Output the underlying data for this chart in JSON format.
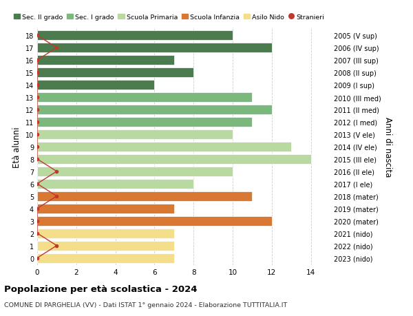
{
  "ages": [
    18,
    17,
    16,
    15,
    14,
    13,
    12,
    11,
    10,
    9,
    8,
    7,
    6,
    5,
    4,
    3,
    2,
    1,
    0
  ],
  "right_labels": [
    "2005 (V sup)",
    "2006 (IV sup)",
    "2007 (III sup)",
    "2008 (II sup)",
    "2009 (I sup)",
    "2010 (III med)",
    "2011 (II med)",
    "2012 (I med)",
    "2013 (V ele)",
    "2014 (IV ele)",
    "2015 (III ele)",
    "2016 (II ele)",
    "2017 (I ele)",
    "2018 (mater)",
    "2019 (mater)",
    "2020 (mater)",
    "2021 (nido)",
    "2022 (nido)",
    "2023 (nido)"
  ],
  "bar_values": [
    10,
    12,
    7,
    8,
    6,
    11,
    12,
    11,
    10,
    13,
    14,
    10,
    8,
    11,
    7,
    12,
    7,
    7,
    7
  ],
  "bar_colors": [
    "#4a7c4e",
    "#4a7c4e",
    "#4a7c4e",
    "#4a7c4e",
    "#4a7c4e",
    "#7ab87d",
    "#7ab87d",
    "#7ab87d",
    "#b8d9a0",
    "#b8d9a0",
    "#b8d9a0",
    "#b8d9a0",
    "#b8d9a0",
    "#d97832",
    "#d97832",
    "#d97832",
    "#f5de8a",
    "#f5de8a",
    "#f5de8a"
  ],
  "stranieri_values": [
    0,
    1,
    0,
    0,
    0,
    0,
    0,
    0,
    0,
    0,
    0,
    1,
    0,
    1,
    0,
    0,
    0,
    1,
    0
  ],
  "legend_labels": [
    "Sec. II grado",
    "Sec. I grado",
    "Scuola Primaria",
    "Scuola Infanzia",
    "Asilo Nido",
    "Stranieri"
  ],
  "legend_colors": [
    "#4a7c4e",
    "#7ab87d",
    "#b8d9a0",
    "#d97832",
    "#f5de8a",
    "#c0392b"
  ],
  "title": "Popolazione per età scolastica - 2024",
  "subtitle": "COMUNE DI PARGHELIA (VV) - Dati ISTAT 1° gennaio 2024 - Elaborazione TUTTITALIA.IT",
  "ylabel": "Età alunni",
  "right_ylabel": "Anni di nascita",
  "xlim": [
    0,
    15
  ],
  "xticks": [
    0,
    2,
    4,
    6,
    8,
    10,
    12,
    14
  ],
  "bg_color": "#ffffff",
  "grid_color": "#cccccc",
  "bar_height": 0.78
}
